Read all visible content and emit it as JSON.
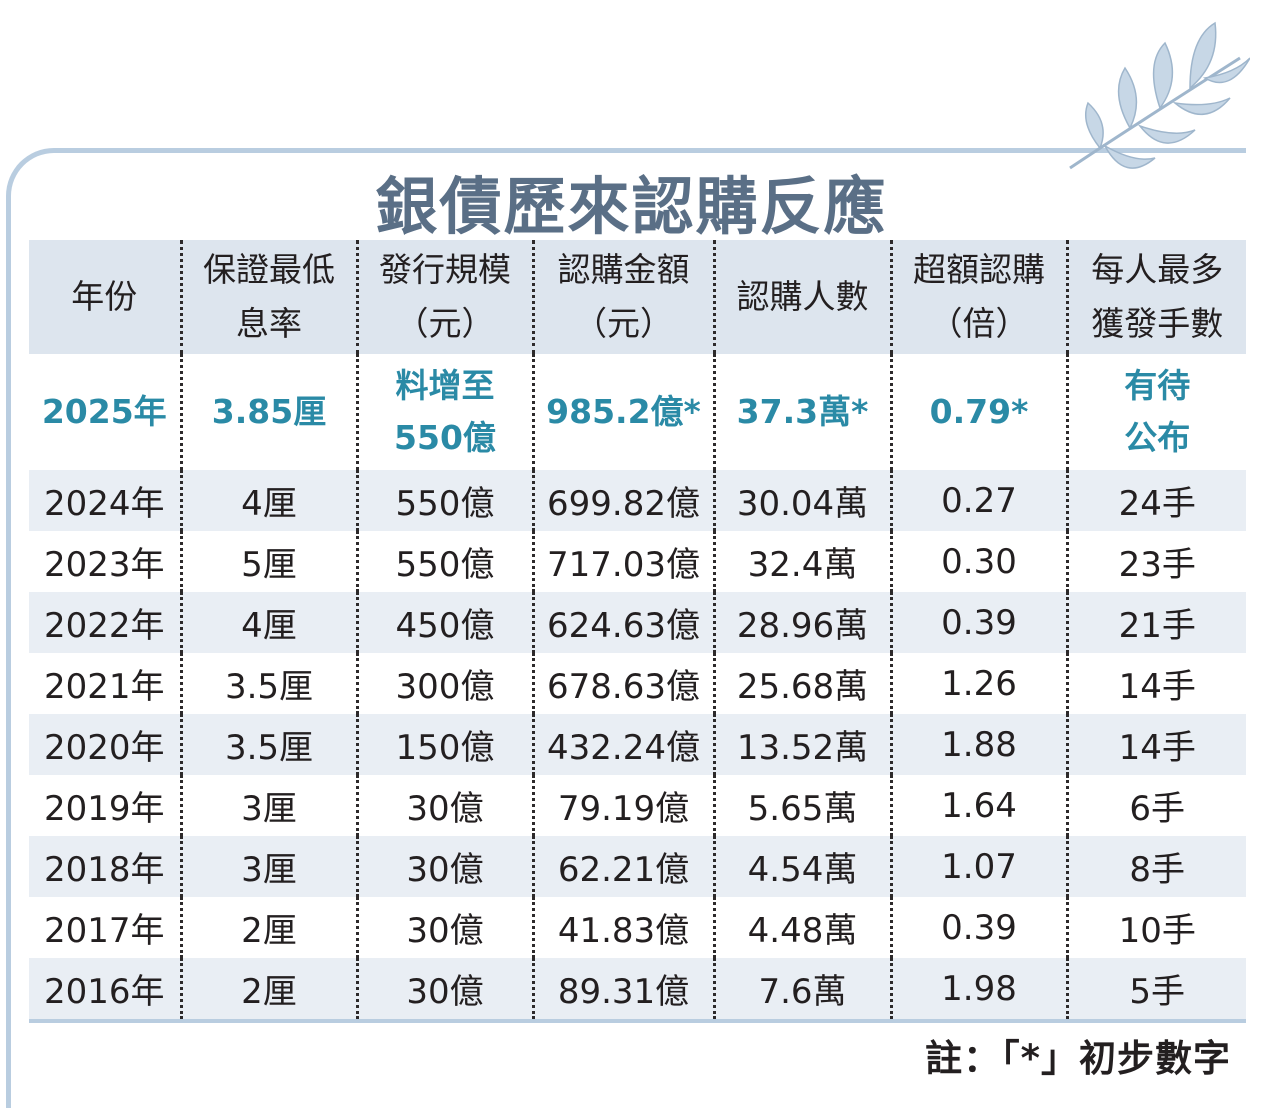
{
  "title": "銀債歷來認購反應",
  "columns": [
    "年份",
    "保證最低息率",
    "發行規模(元)",
    "認購金額(元)",
    "認購人數",
    "超額認購(倍)",
    "每人最多獲發手數"
  ],
  "header": {
    "year": [
      "年份"
    ],
    "rate": [
      "保證最低",
      "息率"
    ],
    "size": [
      "發行規模",
      "（元）"
    ],
    "amount": [
      "認購金額",
      "（元）"
    ],
    "people": [
      "認購人數"
    ],
    "over": [
      "超額認購",
      "（倍）"
    ],
    "lots": [
      "每人最多",
      "獲發手數"
    ]
  },
  "rows": [
    {
      "year": "2025年",
      "rate": "3.85厘",
      "size": [
        "料增至",
        "550億"
      ],
      "amount": "985.2億*",
      "people": "37.3萬*",
      "over": "0.79*",
      "lots": [
        "有待",
        "公布"
      ]
    },
    {
      "year": "2024年",
      "rate": "4厘",
      "size": "550億",
      "amount": "699.82億",
      "people": "30.04萬",
      "over": "0.27",
      "lots": "24手"
    },
    {
      "year": "2023年",
      "rate": "5厘",
      "size": "550億",
      "amount": "717.03億",
      "people": "32.4萬",
      "over": "0.30",
      "lots": "23手"
    },
    {
      "year": "2022年",
      "rate": "4厘",
      "size": "450億",
      "amount": "624.63億",
      "people": "28.96萬",
      "over": "0.39",
      "lots": "21手"
    },
    {
      "year": "2021年",
      "rate": "3.5厘",
      "size": "300億",
      "amount": "678.63億",
      "people": "25.68萬",
      "over": "1.26",
      "lots": "14手"
    },
    {
      "year": "2020年",
      "rate": "3.5厘",
      "size": "150億",
      "amount": "432.24億",
      "people": "13.52萬",
      "over": "1.88",
      "lots": "14手"
    },
    {
      "year": "2019年",
      "rate": "3厘",
      "size": "30億",
      "amount": "79.19億",
      "people": "5.65萬",
      "over": "1.64",
      "lots": "6手"
    },
    {
      "year": "2018年",
      "rate": "3厘",
      "size": "30億",
      "amount": "62.21億",
      "people": "4.54萬",
      "over": "1.07",
      "lots": "8手"
    },
    {
      "year": "2017年",
      "rate": "2厘",
      "size": "30億",
      "amount": "41.83億",
      "people": "4.48萬",
      "over": "0.39",
      "lots": "10手"
    },
    {
      "year": "2016年",
      "rate": "2厘",
      "size": "30億",
      "amount": "89.31億",
      "people": "7.6萬",
      "over": "1.98",
      "lots": "5手"
    }
  ],
  "note": "註：「*」初步數字",
  "colors": {
    "accent": "#2a8aa6",
    "title": "#5a6f86",
    "header_bg": "#dde5ee",
    "row_shade": "#e9eef4",
    "frame": "#b9cde0"
  },
  "icons": {
    "decoration": "leaf-branch-icon"
  }
}
